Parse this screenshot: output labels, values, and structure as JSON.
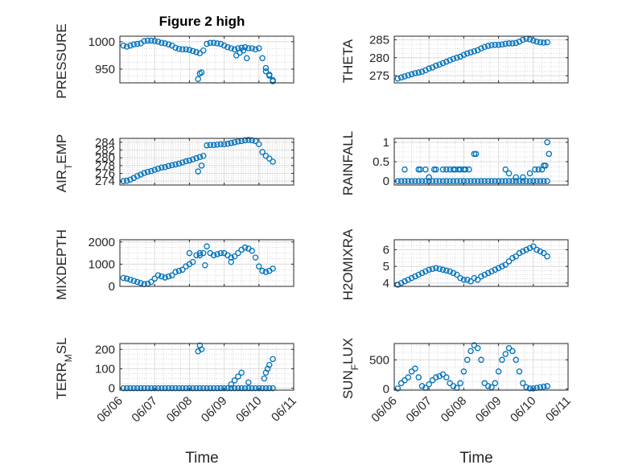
{
  "figure": {
    "title": "Figure 2 high",
    "xlabel": "Time",
    "x_ticks": [
      "06/06",
      "06/07",
      "06/08",
      "06/09",
      "06/10",
      "06/11"
    ],
    "marker_color": "#0072BD",
    "grid": "on (major and minor)"
  },
  "chart_data": [
    {
      "type": "scatter",
      "title": "Figure 2 high",
      "ylabel": "PRESSURE",
      "ylim": [
        925,
        1010
      ],
      "yticks": [
        950,
        1000
      ],
      "xlim": [
        0,
        5
      ],
      "xlabel": "",
      "x": [
        0.1,
        0.2,
        0.3,
        0.4,
        0.5,
        0.6,
        0.7,
        0.8,
        0.9,
        1.0,
        1.1,
        1.2,
        1.3,
        1.4,
        1.5,
        1.6,
        1.7,
        1.8,
        1.9,
        2.0,
        2.1,
        2.2,
        2.3,
        2.4,
        2.5,
        2.6,
        2.7,
        2.8,
        2.9,
        3.0,
        3.1,
        3.2,
        3.3,
        3.4,
        3.5,
        3.6,
        3.7,
        3.8,
        3.9,
        4.0,
        4.1,
        4.2,
        4.3,
        4.4,
        2.25,
        2.3,
        2.35,
        3.35,
        3.45,
        3.55,
        3.65,
        4.2,
        4.3,
        4.4
      ],
      "y": [
        993,
        991,
        993,
        995,
        996,
        997,
        1001,
        1002,
        1002,
        1001,
        1000,
        998,
        997,
        995,
        993,
        989,
        987,
        986,
        986,
        985,
        983,
        981,
        979,
        984,
        996,
        998,
        998,
        997,
        996,
        993,
        990,
        988,
        986,
        988,
        989,
        990,
        988,
        988,
        986,
        988,
        970,
        952,
        940,
        930,
        932,
        942,
        944,
        975,
        980,
        984,
        970,
        946,
        938,
        928
      ]
    },
    {
      "type": "scatter",
      "title": "",
      "ylabel": "THETA",
      "ylim": [
        273,
        286
      ],
      "yticks": [
        275,
        280,
        285
      ],
      "xlim": [
        0,
        5
      ],
      "xlabel": "",
      "x": [
        0.1,
        0.2,
        0.3,
        0.4,
        0.5,
        0.6,
        0.7,
        0.8,
        0.9,
        1.0,
        1.1,
        1.2,
        1.3,
        1.4,
        1.5,
        1.6,
        1.7,
        1.8,
        1.9,
        2.0,
        2.1,
        2.2,
        2.3,
        2.4,
        2.5,
        2.6,
        2.7,
        2.8,
        2.9,
        3.0,
        3.1,
        3.2,
        3.3,
        3.4,
        3.5,
        3.6,
        3.7,
        3.8,
        3.9,
        4.0,
        4.1,
        4.2,
        4.3,
        4.4
      ],
      "y": [
        274.2,
        274.5,
        274.8,
        275.1,
        275.4,
        275.7,
        275.9,
        276.1,
        276.5,
        277.0,
        277.3,
        277.8,
        278.1,
        278.5,
        278.9,
        279.3,
        279.7,
        280.0,
        280.3,
        280.8,
        281.2,
        281.5,
        281.8,
        282.1,
        282.6,
        283.0,
        283.3,
        283.5,
        283.6,
        283.6,
        283.7,
        283.9,
        284.0,
        284.0,
        284.1,
        284.5,
        285.0,
        285.3,
        285.1,
        284.8,
        284.5,
        284.3,
        284.2,
        284.3
      ]
    },
    {
      "type": "scatter",
      "title": "",
      "ylabel": "AIR_TEMP",
      "ylim": [
        273,
        285
      ],
      "yticks": [
        274,
        276,
        278,
        280,
        282,
        284
      ],
      "xlim": [
        0,
        5
      ],
      "xlabel": "",
      "x": [
        0.1,
        0.2,
        0.3,
        0.4,
        0.5,
        0.6,
        0.7,
        0.8,
        0.9,
        1.0,
        1.1,
        1.2,
        1.3,
        1.4,
        1.5,
        1.6,
        1.7,
        1.8,
        1.9,
        2.0,
        2.1,
        2.2,
        2.3,
        2.4,
        2.5,
        2.6,
        2.7,
        2.8,
        2.9,
        3.0,
        3.1,
        3.2,
        3.3,
        3.4,
        3.5,
        3.6,
        3.7,
        3.8,
        3.9,
        4.0,
        4.1,
        4.2,
        4.3,
        4.4,
        2.25,
        2.35
      ],
      "y": [
        274.0,
        274.1,
        274.4,
        274.8,
        275.3,
        275.7,
        276.1,
        276.4,
        276.6,
        276.9,
        277.2,
        277.5,
        277.6,
        277.9,
        278.1,
        278.3,
        278.5,
        278.8,
        279.1,
        279.3,
        279.6,
        279.9,
        280.2,
        280.5,
        283.2,
        283.3,
        283.3,
        283.4,
        283.5,
        283.5,
        283.6,
        283.8,
        284.0,
        284.2,
        284.3,
        284.5,
        284.6,
        284.5,
        284.3,
        283.5,
        281.5,
        280.5,
        279.8,
        279.0,
        276.5,
        278.0
      ]
    },
    {
      "type": "scatter",
      "title": "",
      "ylabel": "RAINFALL",
      "ylim": [
        -0.1,
        1.1
      ],
      "yticks": [
        0,
        0.5,
        1
      ],
      "xlim": [
        0,
        5
      ],
      "xlabel": "",
      "x": [
        0.1,
        0.2,
        0.3,
        0.4,
        0.5,
        0.6,
        0.7,
        0.8,
        0.9,
        1.0,
        1.1,
        1.2,
        1.3,
        1.4,
        1.5,
        1.6,
        1.7,
        1.8,
        1.9,
        2.0,
        2.1,
        2.2,
        2.3,
        2.4,
        2.5,
        2.6,
        2.7,
        2.8,
        2.9,
        3.0,
        3.1,
        3.2,
        3.3,
        3.4,
        3.5,
        3.6,
        3.7,
        3.8,
        3.9,
        4.0,
        4.1,
        4.2,
        4.3,
        4.4,
        0.3,
        0.7,
        0.75,
        0.9,
        1.0,
        1.15,
        1.2,
        1.4,
        1.5,
        1.6,
        1.7,
        1.75,
        1.85,
        1.9,
        2.0,
        2.05,
        2.15,
        2.3,
        2.35,
        3.2,
        3.3,
        3.5,
        3.7,
        3.9,
        4.05,
        4.15,
        4.25,
        4.3,
        4.35,
        4.4,
        4.45
      ],
      "y": [
        0,
        0,
        0,
        0,
        0,
        0,
        0,
        0,
        0,
        0,
        0,
        0,
        0,
        0,
        0,
        0,
        0,
        0,
        0,
        0,
        0,
        0,
        0,
        0,
        0,
        0,
        0,
        0,
        0,
        0,
        0,
        0,
        0,
        0,
        0,
        0,
        0,
        0,
        0,
        0,
        0,
        0,
        0,
        0,
        0.3,
        0.3,
        0.3,
        0.3,
        0.1,
        0.3,
        0.3,
        0.3,
        0.3,
        0.3,
        0.3,
        0.3,
        0.3,
        0.3,
        0.3,
        0.3,
        0.3,
        0.7,
        0.7,
        0.3,
        0.2,
        0.1,
        0.1,
        0.2,
        0.3,
        0.3,
        0.3,
        0.4,
        0.4,
        1.0,
        0.7
      ]
    },
    {
      "type": "scatter",
      "title": "",
      "ylabel": "MIXDEPTH",
      "ylim": [
        0,
        2100
      ],
      "yticks": [
        0,
        1000,
        2000
      ],
      "xlim": [
        0,
        5
      ],
      "xlabel": "",
      "x": [
        0.1,
        0.2,
        0.3,
        0.4,
        0.5,
        0.6,
        0.7,
        0.8,
        0.9,
        1.0,
        1.1,
        1.2,
        1.3,
        1.4,
        1.5,
        1.6,
        1.7,
        1.8,
        1.9,
        2.0,
        2.1,
        2.2,
        2.3,
        2.4,
        2.5,
        2.6,
        2.7,
        2.8,
        2.9,
        3.0,
        3.1,
        3.2,
        3.3,
        3.4,
        3.5,
        3.6,
        3.7,
        3.8,
        3.9,
        4.0,
        4.1,
        4.2,
        4.3,
        4.4,
        2.0,
        2.3,
        2.45,
        3.2
      ],
      "y": [
        380,
        350,
        300,
        250,
        200,
        150,
        100,
        120,
        200,
        350,
        500,
        450,
        400,
        450,
        500,
        650,
        700,
        750,
        900,
        1000,
        1100,
        1400,
        1500,
        1500,
        1800,
        1500,
        1400,
        1450,
        1500,
        1500,
        1400,
        1300,
        1350,
        1500,
        1650,
        1750,
        1700,
        1600,
        1300,
        900,
        700,
        650,
        700,
        800,
        1500,
        1400,
        950,
        1100
      ]
    },
    {
      "type": "scatter",
      "title": "",
      "ylabel": "H2OMIXRA",
      "ylim": [
        3.8,
        6.6
      ],
      "yticks": [
        4,
        5,
        6
      ],
      "xlim": [
        0,
        5
      ],
      "xlabel": "",
      "x": [
        0.1,
        0.2,
        0.3,
        0.4,
        0.5,
        0.6,
        0.7,
        0.8,
        0.9,
        1.0,
        1.1,
        1.2,
        1.3,
        1.4,
        1.5,
        1.6,
        1.7,
        1.8,
        1.9,
        2.0,
        2.1,
        2.2,
        2.3,
        2.4,
        2.5,
        2.6,
        2.7,
        2.8,
        2.9,
        3.0,
        3.1,
        3.2,
        3.3,
        3.4,
        3.5,
        3.6,
        3.7,
        3.8,
        3.9,
        4.0,
        4.1,
        4.2,
        4.3,
        4.4
      ],
      "y": [
        3.9,
        4.0,
        4.1,
        4.2,
        4.3,
        4.4,
        4.5,
        4.6,
        4.7,
        4.8,
        4.85,
        4.9,
        4.85,
        4.8,
        4.75,
        4.7,
        4.6,
        4.5,
        4.3,
        4.2,
        4.2,
        4.1,
        4.3,
        4.2,
        4.4,
        4.5,
        4.6,
        4.7,
        4.8,
        4.9,
        5.0,
        5.1,
        5.3,
        5.5,
        5.6,
        5.8,
        5.9,
        6.0,
        6.1,
        6.2,
        6.0,
        5.9,
        5.8,
        5.6
      ]
    },
    {
      "type": "scatter",
      "title": "",
      "ylabel": "TERR_MSL",
      "ylim": [
        -10,
        230
      ],
      "yticks": [
        0,
        100,
        200
      ],
      "xlim": [
        0,
        5
      ],
      "xlabel": "",
      "x": [
        0.1,
        0.2,
        0.3,
        0.4,
        0.5,
        0.6,
        0.7,
        0.8,
        0.9,
        1.0,
        1.1,
        1.2,
        1.3,
        1.4,
        1.5,
        1.6,
        1.7,
        1.8,
        1.9,
        2.0,
        2.1,
        2.2,
        2.3,
        2.4,
        2.5,
        2.6,
        2.7,
        2.8,
        2.9,
        3.0,
        3.1,
        3.2,
        3.3,
        3.4,
        3.5,
        3.6,
        3.7,
        3.8,
        3.9,
        4.0,
        4.1,
        4.2,
        4.3,
        4.4,
        2.25,
        2.3,
        2.35,
        3.2,
        3.3,
        3.4,
        3.5,
        3.7,
        4.15,
        4.2,
        4.25,
        4.3,
        4.4
      ],
      "y": [
        0,
        0,
        0,
        0,
        0,
        0,
        0,
        0,
        0,
        0,
        0,
        0,
        0,
        0,
        0,
        0,
        0,
        0,
        0,
        0,
        0,
        0,
        0,
        0,
        0,
        0,
        0,
        0,
        0,
        0,
        0,
        0,
        0,
        0,
        0,
        0,
        0,
        0,
        0,
        0,
        0,
        0,
        0,
        0,
        190,
        220,
        200,
        20,
        40,
        60,
        80,
        30,
        50,
        80,
        100,
        120,
        150
      ]
    },
    {
      "type": "scatter",
      "title": "",
      "ylabel": "SUN_FLUX",
      "ylim": [
        -20,
        780
      ],
      "yticks": [
        0,
        500
      ],
      "xlim": [
        0,
        5
      ],
      "xlabel": "",
      "x": [
        0.1,
        0.2,
        0.3,
        0.4,
        0.5,
        0.6,
        0.7,
        0.8,
        0.9,
        1.0,
        1.1,
        1.2,
        1.3,
        1.4,
        1.5,
        1.6,
        1.7,
        1.8,
        1.9,
        2.0,
        2.1,
        2.2,
        2.3,
        2.4,
        2.5,
        2.6,
        2.7,
        2.8,
        2.9,
        3.0,
        3.1,
        3.2,
        3.3,
        3.4,
        3.5,
        3.6,
        3.7,
        3.8,
        3.9,
        4.0,
        4.1,
        4.2,
        4.3,
        4.4
      ],
      "y": [
        10,
        100,
        150,
        200,
        300,
        350,
        200,
        50,
        20,
        80,
        150,
        200,
        220,
        250,
        200,
        100,
        50,
        20,
        100,
        300,
        500,
        650,
        750,
        700,
        500,
        100,
        50,
        30,
        100,
        300,
        500,
        600,
        700,
        650,
        500,
        300,
        100,
        30,
        10,
        10,
        20,
        30,
        40,
        50
      ]
    }
  ]
}
